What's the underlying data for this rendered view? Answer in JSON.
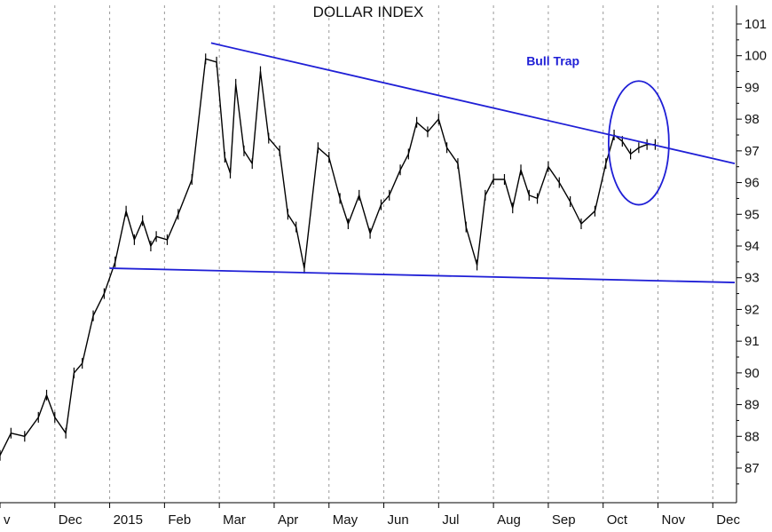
{
  "chart_data": {
    "type": "line",
    "title": "DOLLAR INDEX",
    "xlabel": "",
    "ylabel": "",
    "y_axis_side": "right",
    "ylim": [
      86,
      101.5
    ],
    "yticks": [
      87,
      88,
      89,
      90,
      91,
      92,
      93,
      94,
      95,
      96,
      97,
      98,
      99,
      100,
      101
    ],
    "grid": "vertical-dashed",
    "x_unit": "months since start of November 2014",
    "xlim": [
      0,
      13.4
    ],
    "x_ticks": [
      {
        "label": "v",
        "x": 0.0
      },
      {
        "label": "Dec",
        "x": 1.0
      },
      {
        "label": "2015",
        "x": 2.0
      },
      {
        "label": "Feb",
        "x": 3.0
      },
      {
        "label": "Mar",
        "x": 4.0
      },
      {
        "label": "Apr",
        "x": 5.0
      },
      {
        "label": "May",
        "x": 6.0
      },
      {
        "label": "Jun",
        "x": 7.0
      },
      {
        "label": "Jul",
        "x": 8.0
      },
      {
        "label": "Aug",
        "x": 9.0
      },
      {
        "label": "Sep",
        "x": 10.0
      },
      {
        "label": "Oct",
        "x": 11.0
      },
      {
        "label": "Nov",
        "x": 12.0
      },
      {
        "label": "Dec",
        "x": 13.0
      }
    ],
    "series": [
      {
        "name": "",
        "color": "#000000",
        "x": [
          0.0,
          0.2,
          0.45,
          0.7,
          0.85,
          1.0,
          1.2,
          1.35,
          1.5,
          1.7,
          1.9,
          2.1,
          2.3,
          2.45,
          2.6,
          2.75,
          2.85,
          3.05,
          3.25,
          3.5,
          3.75,
          3.95,
          4.1,
          4.2,
          4.3,
          4.45,
          4.6,
          4.75,
          4.9,
          5.1,
          5.25,
          5.4,
          5.55,
          5.8,
          6.0,
          6.2,
          6.35,
          6.55,
          6.75,
          6.95,
          7.1,
          7.3,
          7.45,
          7.6,
          7.8,
          8.0,
          8.15,
          8.35,
          8.5,
          8.7,
          8.85,
          9.0,
          9.2,
          9.35,
          9.5,
          9.65,
          9.8,
          10.0,
          10.2,
          10.4,
          10.6,
          10.85,
          11.05,
          11.2,
          11.35,
          11.5,
          11.65,
          11.8,
          11.95
        ],
        "y": [
          87.4,
          88.1,
          88.0,
          88.6,
          89.3,
          88.6,
          88.1,
          90.0,
          90.3,
          91.8,
          92.5,
          93.5,
          95.1,
          94.2,
          94.8,
          94.0,
          94.3,
          94.2,
          95.0,
          96.1,
          99.9,
          99.8,
          96.8,
          96.3,
          99.1,
          97.0,
          96.6,
          99.5,
          97.4,
          97.0,
          95.0,
          94.6,
          93.3,
          97.1,
          96.8,
          95.5,
          94.7,
          95.6,
          94.4,
          95.3,
          95.6,
          96.4,
          96.9,
          97.9,
          97.6,
          98.0,
          97.1,
          96.6,
          94.6,
          93.4,
          95.6,
          96.1,
          96.1,
          95.2,
          96.4,
          95.6,
          95.5,
          96.5,
          96.0,
          95.4,
          94.7,
          95.1,
          96.6,
          97.5,
          97.3,
          96.9,
          97.1,
          97.2,
          97.2
        ]
      }
    ],
    "trendlines": [
      {
        "name": "resistance",
        "color": "#1f1fd6",
        "x": [
          3.85,
          13.4
        ],
        "y": [
          100.4,
          96.6
        ]
      },
      {
        "name": "support",
        "color": "#1f1fd6",
        "x": [
          2.0,
          13.4
        ],
        "y": [
          93.3,
          92.85
        ]
      }
    ],
    "annotations": [
      {
        "text": "Bull Trap",
        "color": "#1f1fd6",
        "x": 9.6,
        "y": 99.7
      }
    ],
    "highlight_ellipse": {
      "color": "#1f1fd6",
      "cx": 11.65,
      "cy": 97.25,
      "rx": 0.55,
      "ry": 1.95
    }
  }
}
